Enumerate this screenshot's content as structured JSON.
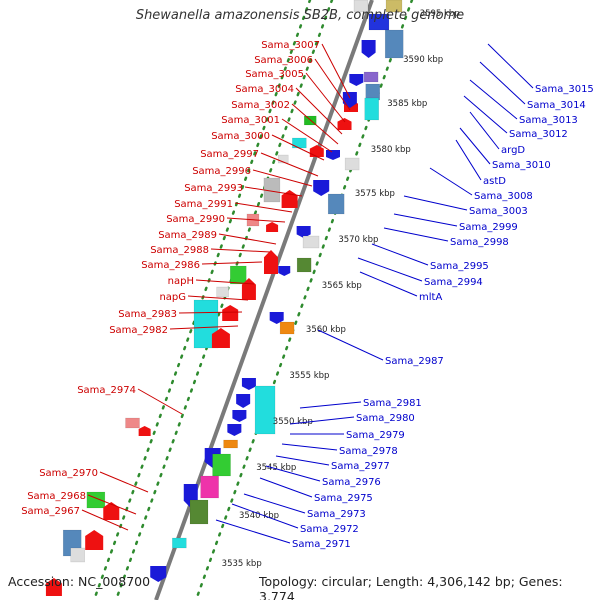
{
  "title": "Shewanella amazonensis SB2B, complete genome",
  "footer": {
    "accession": "Accession: NC_008700",
    "summary": "Topology: circular; Length: 4,306,142 bp; Genes: 3,774"
  },
  "colors": {
    "left_label": "#cc0000",
    "right_label": "#0000cc",
    "backbone": "#7a7a7a",
    "tick_dots": "#2e8b2e"
  },
  "scale_labels": [
    "3595 kbp",
    "3590 kbp",
    "3585 kbp",
    "3580 kbp",
    "3575 kbp",
    "3570 kbp",
    "3565 kbp",
    "3560 kbp",
    "3555 kbp",
    "3550 kbp",
    "3545 kbp",
    "3540 kbp",
    "3535 kbp"
  ],
  "left_genes": [
    "Sama_3007",
    "Sama_3006",
    "Sama_3005",
    "Sama_3004",
    "Sama_3002",
    "Sama_3001",
    "Sama_3000",
    "Sama_2997",
    "Sama_2996",
    "Sama_2993",
    "Sama_2991",
    "Sama_2990",
    "Sama_2989",
    "Sama_2988",
    "Sama_2986",
    "napH",
    "napG",
    "Sama_2983",
    "Sama_2982",
    "Sama_2974",
    "Sama_2970",
    "Sama_2968",
    "Sama_2967"
  ],
  "right_genes": [
    "Sama_3015",
    "Sama_3014",
    "Sama_3013",
    "Sama_3012",
    "argD",
    "Sama_3010",
    "astD",
    "Sama_3008",
    "Sama_3003",
    "Sama_2999",
    "Sama_2998",
    "Sama_2995",
    "Sama_2994",
    "mltA",
    "Sama_2987",
    "Sama_2981",
    "Sama_2980",
    "Sama_2979",
    "Sama_2978",
    "Sama_2977",
    "Sama_2976",
    "Sama_2975",
    "Sama_2973",
    "Sama_2972",
    "Sama_2971"
  ]
}
